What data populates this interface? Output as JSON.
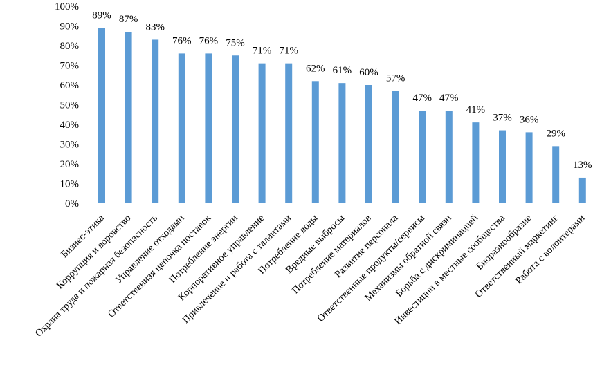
{
  "chart_data": {
    "type": "bar",
    "categories": [
      "Бизнес-этика",
      "Коррупция и воровство",
      "Охрана труда и пожарная безопасность",
      "Управление отходами",
      "Ответственная цепочка поставок",
      "Потребление энергии",
      "Корпоративное управление",
      "Привлечение и работа с талантами",
      "Потребление воды",
      "Вредные выбросы",
      "Потребление материалов",
      "Развитие персонала",
      "Ответственные продукты/сервисы",
      "Механизмы обратной связи",
      "Борьба с дискриминацией",
      "Инвестиции в местные сообщества",
      "Биоразнообразие",
      "Ответственный маркетинг",
      "Работа с волонтерами"
    ],
    "values": [
      89,
      87,
      83,
      76,
      76,
      75,
      71,
      71,
      62,
      61,
      60,
      57,
      47,
      47,
      41,
      37,
      36,
      29,
      13
    ],
    "data_labels": [
      "89%",
      "87%",
      "83%",
      "76%",
      "76%",
      "75%",
      "71%",
      "71%",
      "62%",
      "61%",
      "60%",
      "57%",
      "47%",
      "47%",
      "41%",
      "37%",
      "36%",
      "29%",
      "13%"
    ],
    "y_ticks": [
      0,
      10,
      20,
      30,
      40,
      50,
      60,
      70,
      80,
      90,
      100
    ],
    "y_tick_labels": [
      "0%",
      "10%",
      "20%",
      "30%",
      "40%",
      "50%",
      "60%",
      "70%",
      "80%",
      "90%",
      "100%"
    ],
    "ylim": [
      0,
      100
    ],
    "title": "",
    "xlabel": "",
    "ylabel": "",
    "grid": false,
    "legend": "none",
    "bar_color": "#5b9bd5"
  }
}
